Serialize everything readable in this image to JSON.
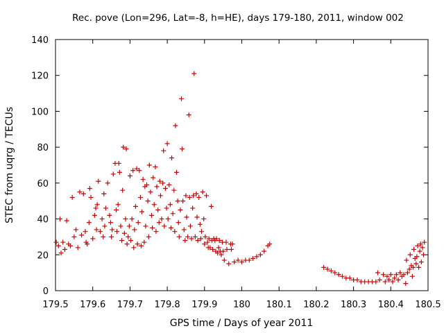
{
  "chart_data": {
    "type": "scatter",
    "title": "Rec. pove (Lon=296, Lat=-8, h=HE), days 179-180, 2011, window 002",
    "xlabel": "GPS time / Days of year 2011",
    "ylabel": "STEC from uqrg / TECUs",
    "xlim": [
      179.5,
      180.5
    ],
    "ylim": [
      0,
      140
    ],
    "x_ticks": [
      179.5,
      179.6,
      179.7,
      179.8,
      179.9,
      180.0,
      180.1,
      180.2,
      180.3,
      180.4,
      180.5
    ],
    "x_tick_labels": [
      "179.5",
      "179.6",
      "179.7",
      "179.8",
      "179.9",
      "180",
      "180.1",
      "180.2",
      "180.3",
      "180.4",
      "180.5"
    ],
    "y_ticks": [
      0,
      20,
      40,
      60,
      80,
      100,
      120,
      140
    ],
    "y_tick_labels": [
      "0",
      "20",
      "40",
      "60",
      "80",
      "100",
      "120",
      "140"
    ],
    "grid": false,
    "marker": "+",
    "series": [
      {
        "name": "STEC",
        "color": "#cc0000",
        "points": [
          [
            179.502,
            27
          ],
          [
            179.508,
            25
          ],
          [
            179.512,
            40
          ],
          [
            179.515,
            21
          ],
          [
            179.52,
            27
          ],
          [
            179.525,
            23
          ],
          [
            179.53,
            39
          ],
          [
            179.535,
            26
          ],
          [
            179.54,
            25
          ],
          [
            179.545,
            52
          ],
          [
            179.55,
            30
          ],
          [
            179.555,
            34
          ],
          [
            179.56,
            24
          ],
          [
            179.565,
            55
          ],
          [
            179.57,
            31
          ],
          [
            179.575,
            54
          ],
          [
            179.58,
            33
          ],
          [
            179.582,
            27
          ],
          [
            179.585,
            26
          ],
          [
            179.59,
            38
          ],
          [
            179.592,
            57
          ],
          [
            179.595,
            52
          ],
          [
            179.6,
            29
          ],
          [
            179.605,
            42
          ],
          [
            179.608,
            46
          ],
          [
            179.61,
            34
          ],
          [
            179.612,
            48
          ],
          [
            179.615,
            61
          ],
          [
            179.62,
            33
          ],
          [
            179.625,
            40
          ],
          [
            179.628,
            30
          ],
          [
            179.63,
            54
          ],
          [
            179.632,
            36
          ],
          [
            179.635,
            46
          ],
          [
            179.64,
            60
          ],
          [
            179.645,
            42
          ],
          [
            179.648,
            38
          ],
          [
            179.65,
            30
          ],
          [
            179.652,
            34
          ],
          [
            179.655,
            65
          ],
          [
            179.66,
            71
          ],
          [
            179.663,
            45
          ],
          [
            179.665,
            33
          ],
          [
            179.668,
            48
          ],
          [
            179.67,
            71
          ],
          [
            179.672,
            66
          ],
          [
            179.675,
            36
          ],
          [
            179.678,
            28
          ],
          [
            179.68,
            56
          ],
          [
            179.682,
            80
          ],
          [
            179.685,
            32
          ],
          [
            179.688,
            40
          ],
          [
            179.69,
            79
          ],
          [
            179.692,
            26
          ],
          [
            179.695,
            30
          ],
          [
            179.698,
            36
          ],
          [
            179.7,
            64
          ],
          [
            179.702,
            28
          ],
          [
            179.705,
            40
          ],
          [
            179.708,
            67
          ],
          [
            179.71,
            24
          ],
          [
            179.712,
            34
          ],
          [
            179.715,
            47
          ],
          [
            179.718,
            68
          ],
          [
            179.72,
            26
          ],
          [
            179.722,
            38
          ],
          [
            179.725,
            67
          ],
          [
            179.728,
            52
          ],
          [
            179.73,
            25
          ],
          [
            179.732,
            44
          ],
          [
            179.735,
            62
          ],
          [
            179.738,
            27
          ],
          [
            179.74,
            58
          ],
          [
            179.742,
            36
          ],
          [
            179.745,
            59
          ],
          [
            179.748,
            50
          ],
          [
            179.75,
            30
          ],
          [
            179.752,
            70
          ],
          [
            179.755,
            55
          ],
          [
            179.758,
            42
          ],
          [
            179.76,
            35
          ],
          [
            179.762,
            63
          ],
          [
            179.765,
            48
          ],
          [
            179.768,
            69
          ],
          [
            179.77,
            33
          ],
          [
            179.772,
            58
          ],
          [
            179.775,
            45
          ],
          [
            179.778,
            38
          ],
          [
            179.78,
            61
          ],
          [
            179.782,
            53
          ],
          [
            179.785,
            40
          ],
          [
            179.788,
            60
          ],
          [
            179.79,
            78
          ],
          [
            179.792,
            36
          ],
          [
            179.795,
            57
          ],
          [
            179.798,
            46
          ],
          [
            179.8,
            82
          ],
          [
            179.802,
            40
          ],
          [
            179.805,
            59
          ],
          [
            179.808,
            48
          ],
          [
            179.81,
            35
          ],
          [
            179.812,
            74
          ],
          [
            179.815,
            43
          ],
          [
            179.818,
            56
          ],
          [
            179.82,
            33
          ],
          [
            179.822,
            92
          ],
          [
            179.825,
            66
          ],
          [
            179.828,
            50
          ],
          [
            179.83,
            38
          ],
          [
            179.832,
            30
          ],
          [
            179.835,
            45
          ],
          [
            179.838,
            107
          ],
          [
            179.84,
            79
          ],
          [
            179.842,
            50
          ],
          [
            179.845,
            34
          ],
          [
            179.848,
            28
          ],
          [
            179.85,
            53
          ],
          [
            179.852,
            41
          ],
          [
            179.855,
            30
          ],
          [
            179.858,
            98
          ],
          [
            179.86,
            52
          ],
          [
            179.862,
            36
          ],
          [
            179.865,
            29
          ],
          [
            179.868,
            46
          ],
          [
            179.87,
            53
          ],
          [
            179.872,
            121
          ],
          [
            179.875,
            30
          ],
          [
            179.878,
            54
          ],
          [
            179.88,
            41
          ],
          [
            179.882,
            28
          ],
          [
            179.885,
            52
          ],
          [
            179.888,
            37
          ],
          [
            179.89,
            29
          ],
          [
            179.892,
            33
          ],
          [
            179.895,
            55
          ],
          [
            179.898,
            40
          ],
          [
            179.9,
            26
          ],
          [
            179.902,
            30
          ],
          [
            179.905,
            53
          ],
          [
            179.908,
            27
          ],
          [
            179.91,
            24
          ],
          [
            179.912,
            29
          ],
          [
            179.915,
            24
          ],
          [
            179.918,
            47
          ],
          [
            179.92,
            28
          ],
          [
            179.922,
            23
          ],
          [
            179.925,
            29
          ],
          [
            179.928,
            28
          ],
          [
            179.93,
            22
          ],
          [
            179.932,
            29
          ],
          [
            179.935,
            21
          ],
          [
            179.938,
            24
          ],
          [
            179.94,
            28
          ],
          [
            179.942,
            22
          ],
          [
            179.945,
            20
          ],
          [
            179.948,
            27
          ],
          [
            179.95,
            22
          ],
          [
            179.953,
            17
          ],
          [
            179.958,
            27
          ],
          [
            179.96,
            23
          ],
          [
            179.965,
            15
          ],
          [
            179.97,
            26
          ],
          [
            179.972,
            23
          ],
          [
            179.975,
            26
          ],
          [
            179.98,
            16
          ],
          [
            179.99,
            17
          ],
          [
            180.0,
            16
          ],
          [
            180.01,
            17
          ],
          [
            180.02,
            17
          ],
          [
            180.03,
            18
          ],
          [
            180.04,
            19
          ],
          [
            180.05,
            20
          ],
          [
            180.06,
            22
          ],
          [
            180.07,
            25
          ],
          [
            180.075,
            26
          ],
          [
            180.22,
            13
          ],
          [
            180.23,
            12
          ],
          [
            180.24,
            11
          ],
          [
            180.25,
            10
          ],
          [
            180.26,
            9
          ],
          [
            180.27,
            8
          ],
          [
            180.28,
            7
          ],
          [
            180.29,
            7
          ],
          [
            180.3,
            6
          ],
          [
            180.31,
            6
          ],
          [
            180.32,
            5
          ],
          [
            180.33,
            5
          ],
          [
            180.34,
            5
          ],
          [
            180.35,
            5
          ],
          [
            180.36,
            5
          ],
          [
            180.365,
            10
          ],
          [
            180.37,
            6
          ],
          [
            180.38,
            9
          ],
          [
            180.385,
            5
          ],
          [
            180.39,
            8
          ],
          [
            180.395,
            6
          ],
          [
            180.4,
            9
          ],
          [
            180.405,
            5
          ],
          [
            180.41,
            7
          ],
          [
            180.415,
            9
          ],
          [
            180.42,
            6
          ],
          [
            180.425,
            10
          ],
          [
            180.43,
            8
          ],
          [
            180.435,
            9
          ],
          [
            180.44,
            4
          ],
          [
            180.442,
            17
          ],
          [
            180.445,
            10
          ],
          [
            180.45,
            12
          ],
          [
            180.452,
            20
          ],
          [
            180.455,
            14
          ],
          [
            180.458,
            8
          ],
          [
            180.46,
            13
          ],
          [
            180.462,
            23
          ],
          [
            180.465,
            18
          ],
          [
            180.468,
            15
          ],
          [
            180.47,
            19
          ],
          [
            180.472,
            25
          ],
          [
            180.475,
            13
          ],
          [
            180.478,
            22
          ],
          [
            180.48,
            26
          ],
          [
            180.482,
            16
          ],
          [
            180.485,
            24
          ],
          [
            180.488,
            20
          ],
          [
            180.49,
            27
          ]
        ]
      }
    ]
  }
}
